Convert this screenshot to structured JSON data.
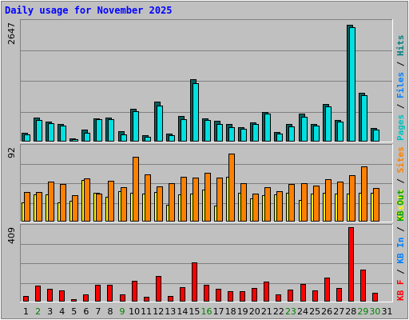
{
  "chart_data": {
    "type": "bar",
    "title": "Daily usage for November 2025",
    "categories": [
      "1",
      "2",
      "3",
      "4",
      "5",
      "6",
      "7",
      "8",
      "9",
      "10",
      "11",
      "12",
      "13",
      "14",
      "15",
      "16",
      "17",
      "18",
      "19",
      "20",
      "21",
      "22",
      "23",
      "24",
      "25",
      "26",
      "27",
      "28",
      "29",
      "30",
      "31"
    ],
    "weekend_days": [
      "2",
      "9",
      "16",
      "23",
      "29",
      "30"
    ],
    "weekend_color": "#008000",
    "day_color": "#000000",
    "panels": [
      {
        "id": "hits",
        "ymax_label": "2647",
        "ymax": 2647,
        "right_labels": [
          {
            "text": "Pages",
            "color": "#00c0c0"
          },
          {
            "text": " / ",
            "color": "#000000"
          },
          {
            "text": "Files",
            "color": "#0080ff"
          },
          {
            "text": " / ",
            "color": "#000000"
          },
          {
            "text": "Hits",
            "color": "#008080"
          }
        ],
        "series": [
          {
            "name": "Hits",
            "color": "#006060",
            "values": [
              190,
              530,
              440,
              380,
              70,
              270,
              520,
              530,
              230,
              730,
              140,
              880,
              180,
              560,
              1380,
              520,
              450,
              390,
              320,
              420,
              650,
              210,
              380,
              610,
              390,
              830,
              480,
              2580,
              1080,
              300,
              0
            ]
          },
          {
            "name": "Files",
            "color": "#00e0e0",
            "values": [
              160,
              480,
              410,
              350,
              50,
              200,
              490,
              500,
              150,
              670,
              100,
              800,
              140,
              500,
              1280,
              480,
              380,
              310,
              290,
              380,
              610,
              180,
              340,
              540,
              350,
              780,
              440,
              2520,
              1020,
              270,
              0
            ]
          }
        ]
      },
      {
        "id": "sites",
        "ymax_label": "92",
        "ymax": 92,
        "right_labels": [
          {
            "text": "Visits",
            "color": "#ffff00"
          },
          {
            "text": " / ",
            "color": "#000000"
          },
          {
            "text": "Sites",
            "color": "#ff8000"
          }
        ],
        "series": [
          {
            "name": "Visits",
            "color": "#ffff00",
            "values": [
              23,
              33,
              33,
              23,
              25,
              51,
              35,
              30,
              37,
              35,
              34,
              36,
              21,
              33,
              34,
              39,
              20,
              55,
              35,
              28,
              32,
              33,
              35,
              26,
              34,
              35,
              34,
              34,
              35,
              35,
              0
            ]
          },
          {
            "name": "Sites",
            "color": "#ff8000",
            "values": [
              36,
              36,
              49,
              46,
              32,
              53,
              34,
              50,
              42,
              79,
              58,
              43,
              47,
              55,
              54,
              60,
              54,
              83,
              47,
              34,
              42,
              37,
              46,
              47,
              44,
              52,
              49,
              57,
              68,
              41,
              0
            ]
          }
        ]
      },
      {
        "id": "traffic",
        "ymax_label": "409",
        "ymax": 409,
        "right_labels": [
          {
            "text": "KB F",
            "color": "#ff0000"
          },
          {
            "text": " / ",
            "color": "#000000"
          },
          {
            "text": "KB In",
            "color": "#0080ff"
          },
          {
            "text": " / ",
            "color": "#000000"
          },
          {
            "text": "KB Out",
            "color": "#00a000"
          }
        ],
        "series": [
          {
            "name": "KB F",
            "color": "#ff0000",
            "values": [
              30,
              85,
              70,
              60,
              15,
              40,
              90,
              90,
              40,
              115,
              25,
              140,
              30,
              80,
              215,
              90,
              70,
              55,
              55,
              75,
              110,
              40,
              65,
              95,
              60,
              130,
              75,
              405,
              175,
              50,
              0
            ]
          }
        ]
      }
    ]
  }
}
